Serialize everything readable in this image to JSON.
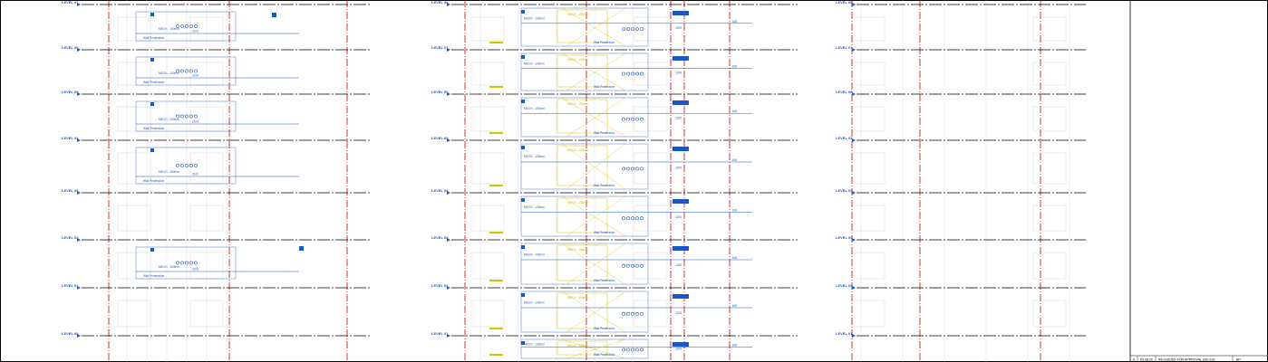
{
  "colors": {
    "background": "#ffffff",
    "level_line": "#000000",
    "grid_red": "#cc0000",
    "service_blue": "#1a56c4",
    "service_yellow": "#d4c200",
    "ghost_grey": "#d6d6d6"
  },
  "levels": {
    "left_labels": [
      "LEVEL 07",
      "LEVEL 06",
      "LEVEL 05",
      "LEVEL 04",
      "LEVEL 03",
      "LEVEL 02",
      "LEVEL 01",
      "LEVEL 00"
    ],
    "mid_labels": [
      "LEVEL 08",
      "LEVEL 07",
      "LEVEL 06",
      "LEVEL 05",
      "LEVEL 04",
      "LEVEL 03",
      "LEVEL 02",
      "LEVEL 01"
    ],
    "right_labels": [
      "LEVEL 08",
      "LEVEL 07",
      "LEVEL 06",
      "LEVEL 05",
      "LEVEL 04",
      "LEVEL 03",
      "LEVEL 02",
      "LEVEL 01"
    ]
  },
  "annotations": {
    "penetration_label": "Wall Penetration",
    "service_tag": "MECH - 100mm",
    "dim_2100": "2100",
    "dim_1200": "1200",
    "dim_600": "600"
  },
  "title_block": {
    "rev": "A",
    "date": "05.08.20",
    "description": "RE-ISSUED FOR APPROVAL (SD-2/3)",
    "initials": "BP"
  }
}
